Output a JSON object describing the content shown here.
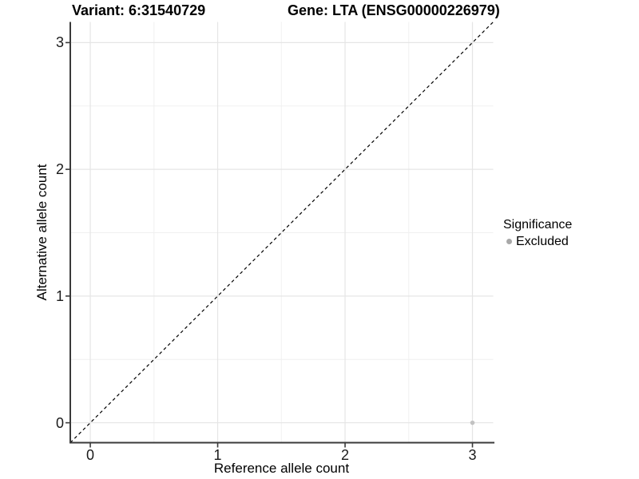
{
  "header": {
    "variant_title": "Variant: 6:31540729",
    "gene_title": "Gene: LTA (ENSG00000226979)"
  },
  "axes": {
    "x": {
      "label": "Reference allele count",
      "tick_labels": [
        "0",
        "1",
        "2",
        "3"
      ]
    },
    "y": {
      "label": "Alternative allele count",
      "tick_labels": [
        "0",
        "1",
        "2",
        "3"
      ]
    }
  },
  "legend": {
    "title": "Significance",
    "items": [
      {
        "label": "Excluded",
        "color": "#a8a8a8"
      }
    ]
  },
  "chart_data": {
    "type": "scatter",
    "title": "Variant: 6:31540729 — Gene: LTA (ENSG00000226979)",
    "xlabel": "Reference allele count",
    "ylabel": "Alternative allele count",
    "xlim": [
      -0.157,
      3.163
    ],
    "ylim": [
      -0.157,
      3.163
    ],
    "x_ticks": [
      0,
      1,
      2,
      3
    ],
    "y_ticks": [
      0,
      1,
      2,
      3
    ],
    "minor_ticks_x": [
      0.5,
      1.5,
      2.5
    ],
    "minor_ticks_y": [
      0.5,
      1.5,
      2.5
    ],
    "grid": "major+minor",
    "legend_position": "right",
    "series": [
      {
        "name": "Excluded",
        "color": "#c2c2c2",
        "points": [
          [
            3,
            0
          ]
        ]
      }
    ],
    "reference_line": {
      "type": "identity",
      "style": "dashed",
      "color": "#000000",
      "from": [
        -0.157,
        -0.157
      ],
      "to": [
        3.163,
        3.163
      ]
    }
  },
  "style": {
    "background": "#ffffff",
    "grid_major_color": "#e5e5e5",
    "grid_minor_color": "#f0f0f0",
    "axis_line_color": "#3a3a3a",
    "tick_mark_color": "#3a3a3a",
    "point_color": "#c2c2c2",
    "legend_key_color": "#a8a8a8",
    "text_color": "#000000"
  }
}
